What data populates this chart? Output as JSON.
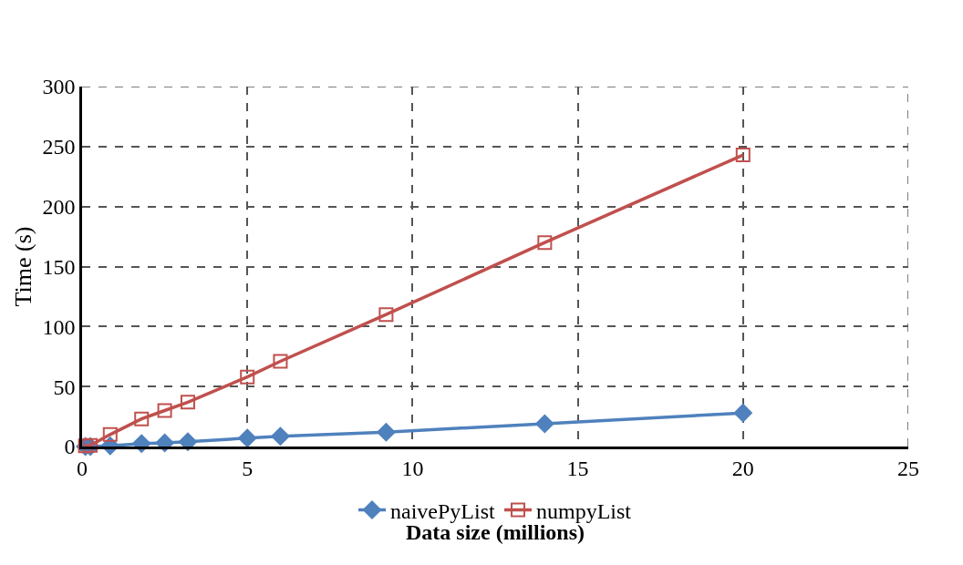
{
  "chart_data": {
    "type": "line",
    "xlabel": "Data size (millions)",
    "ylabel": "Time (s)",
    "x": [
      0.1,
      0.25,
      0.85,
      1.8,
      2.5,
      3.2,
      5,
      6,
      9.2,
      14,
      20
    ],
    "series": [
      {
        "name": "naivePyList",
        "color": "#4f81bd",
        "marker": "diamond",
        "values": [
          0,
          0,
          0.5,
          2.5,
          3,
          4,
          7,
          8.5,
          12,
          19,
          28
        ]
      },
      {
        "name": "numpyList",
        "color": "#c0504d",
        "marker": "square-open",
        "values": [
          0.5,
          1,
          10,
          23,
          30,
          37,
          58,
          71,
          110,
          170,
          243
        ]
      }
    ],
    "xlim": [
      0,
      25
    ],
    "xticks": [
      0,
      5,
      10,
      15,
      20,
      25
    ],
    "ylim": [
      0,
      300
    ],
    "yticks": [
      0,
      50,
      100,
      150,
      200,
      250,
      300
    ],
    "grid": true,
    "legend": "bottom"
  }
}
